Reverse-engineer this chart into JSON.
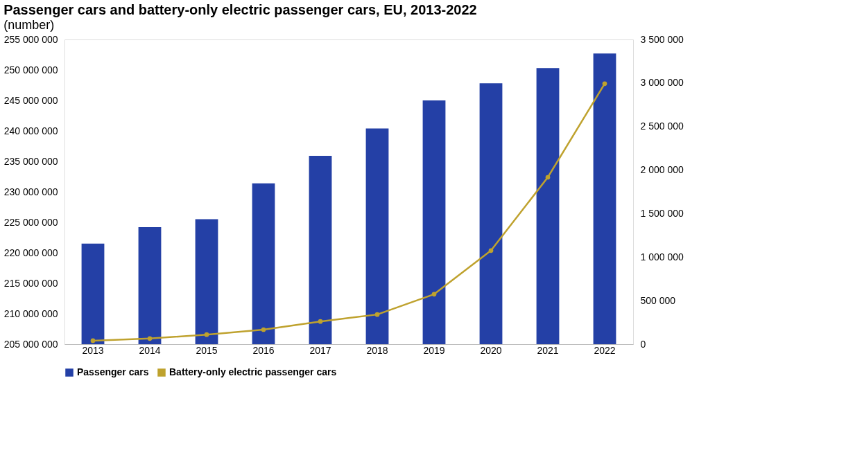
{
  "chart_data": {
    "type": "bar",
    "title": "Passenger cars and battery-only electric passenger cars, EU, 2013-2022",
    "subtitle": "(number)",
    "categories": [
      "2013",
      "2014",
      "2015",
      "2016",
      "2017",
      "2018",
      "2019",
      "2020",
      "2021",
      "2022"
    ],
    "series": [
      {
        "name": "Passenger cars",
        "color": "#2440a6",
        "values": [
          221500000,
          224200000,
          225500000,
          231400000,
          235900000,
          240400000,
          245000000,
          247800000,
          250300000,
          252700000
        ]
      },
      {
        "name": "Battery-only electric passenger cars",
        "color": "#bfa22e",
        "type": "line",
        "axis": "y2",
        "values": [
          40000,
          65000,
          110000,
          167000,
          261000,
          341000,
          574000,
          1075000,
          1917000,
          2992000
        ]
      }
    ],
    "ylim": [
      205000000,
      255000000
    ],
    "yticks": [
      {
        "value": 205000000,
        "label": "205 000 000"
      },
      {
        "value": 210000000,
        "label": "210 000 000"
      },
      {
        "value": 215000000,
        "label": "215 000 000"
      },
      {
        "value": 220000000,
        "label": "220 000 000"
      },
      {
        "value": 225000000,
        "label": "225 000 000"
      },
      {
        "value": 230000000,
        "label": "230 000 000"
      },
      {
        "value": 235000000,
        "label": "235 000 000"
      },
      {
        "value": 240000000,
        "label": "240 000 000"
      },
      {
        "value": 245000000,
        "label": "245 000 000"
      },
      {
        "value": 250000000,
        "label": "250 000 000"
      },
      {
        "value": 255000000,
        "label": "255 000 000"
      }
    ],
    "y2lim": [
      0,
      3500000
    ],
    "y2ticks": [
      0,
      {
        "value": 500000,
        "label": "500 000"
      },
      {
        "value": 1000000,
        "label": "1 000 000"
      },
      {
        "value": 1500000,
        "label": "1 500 000"
      },
      {
        "value": 2000000,
        "label": "2 000 000"
      },
      {
        "value": 2500000,
        "label": "2 500 000"
      },
      {
        "value": 3000000,
        "label": "3 000 000"
      },
      {
        "value": 3500000,
        "label": "3 500 000"
      }
    ],
    "marker": "circle",
    "legend": "bottom",
    "grid": false
  }
}
